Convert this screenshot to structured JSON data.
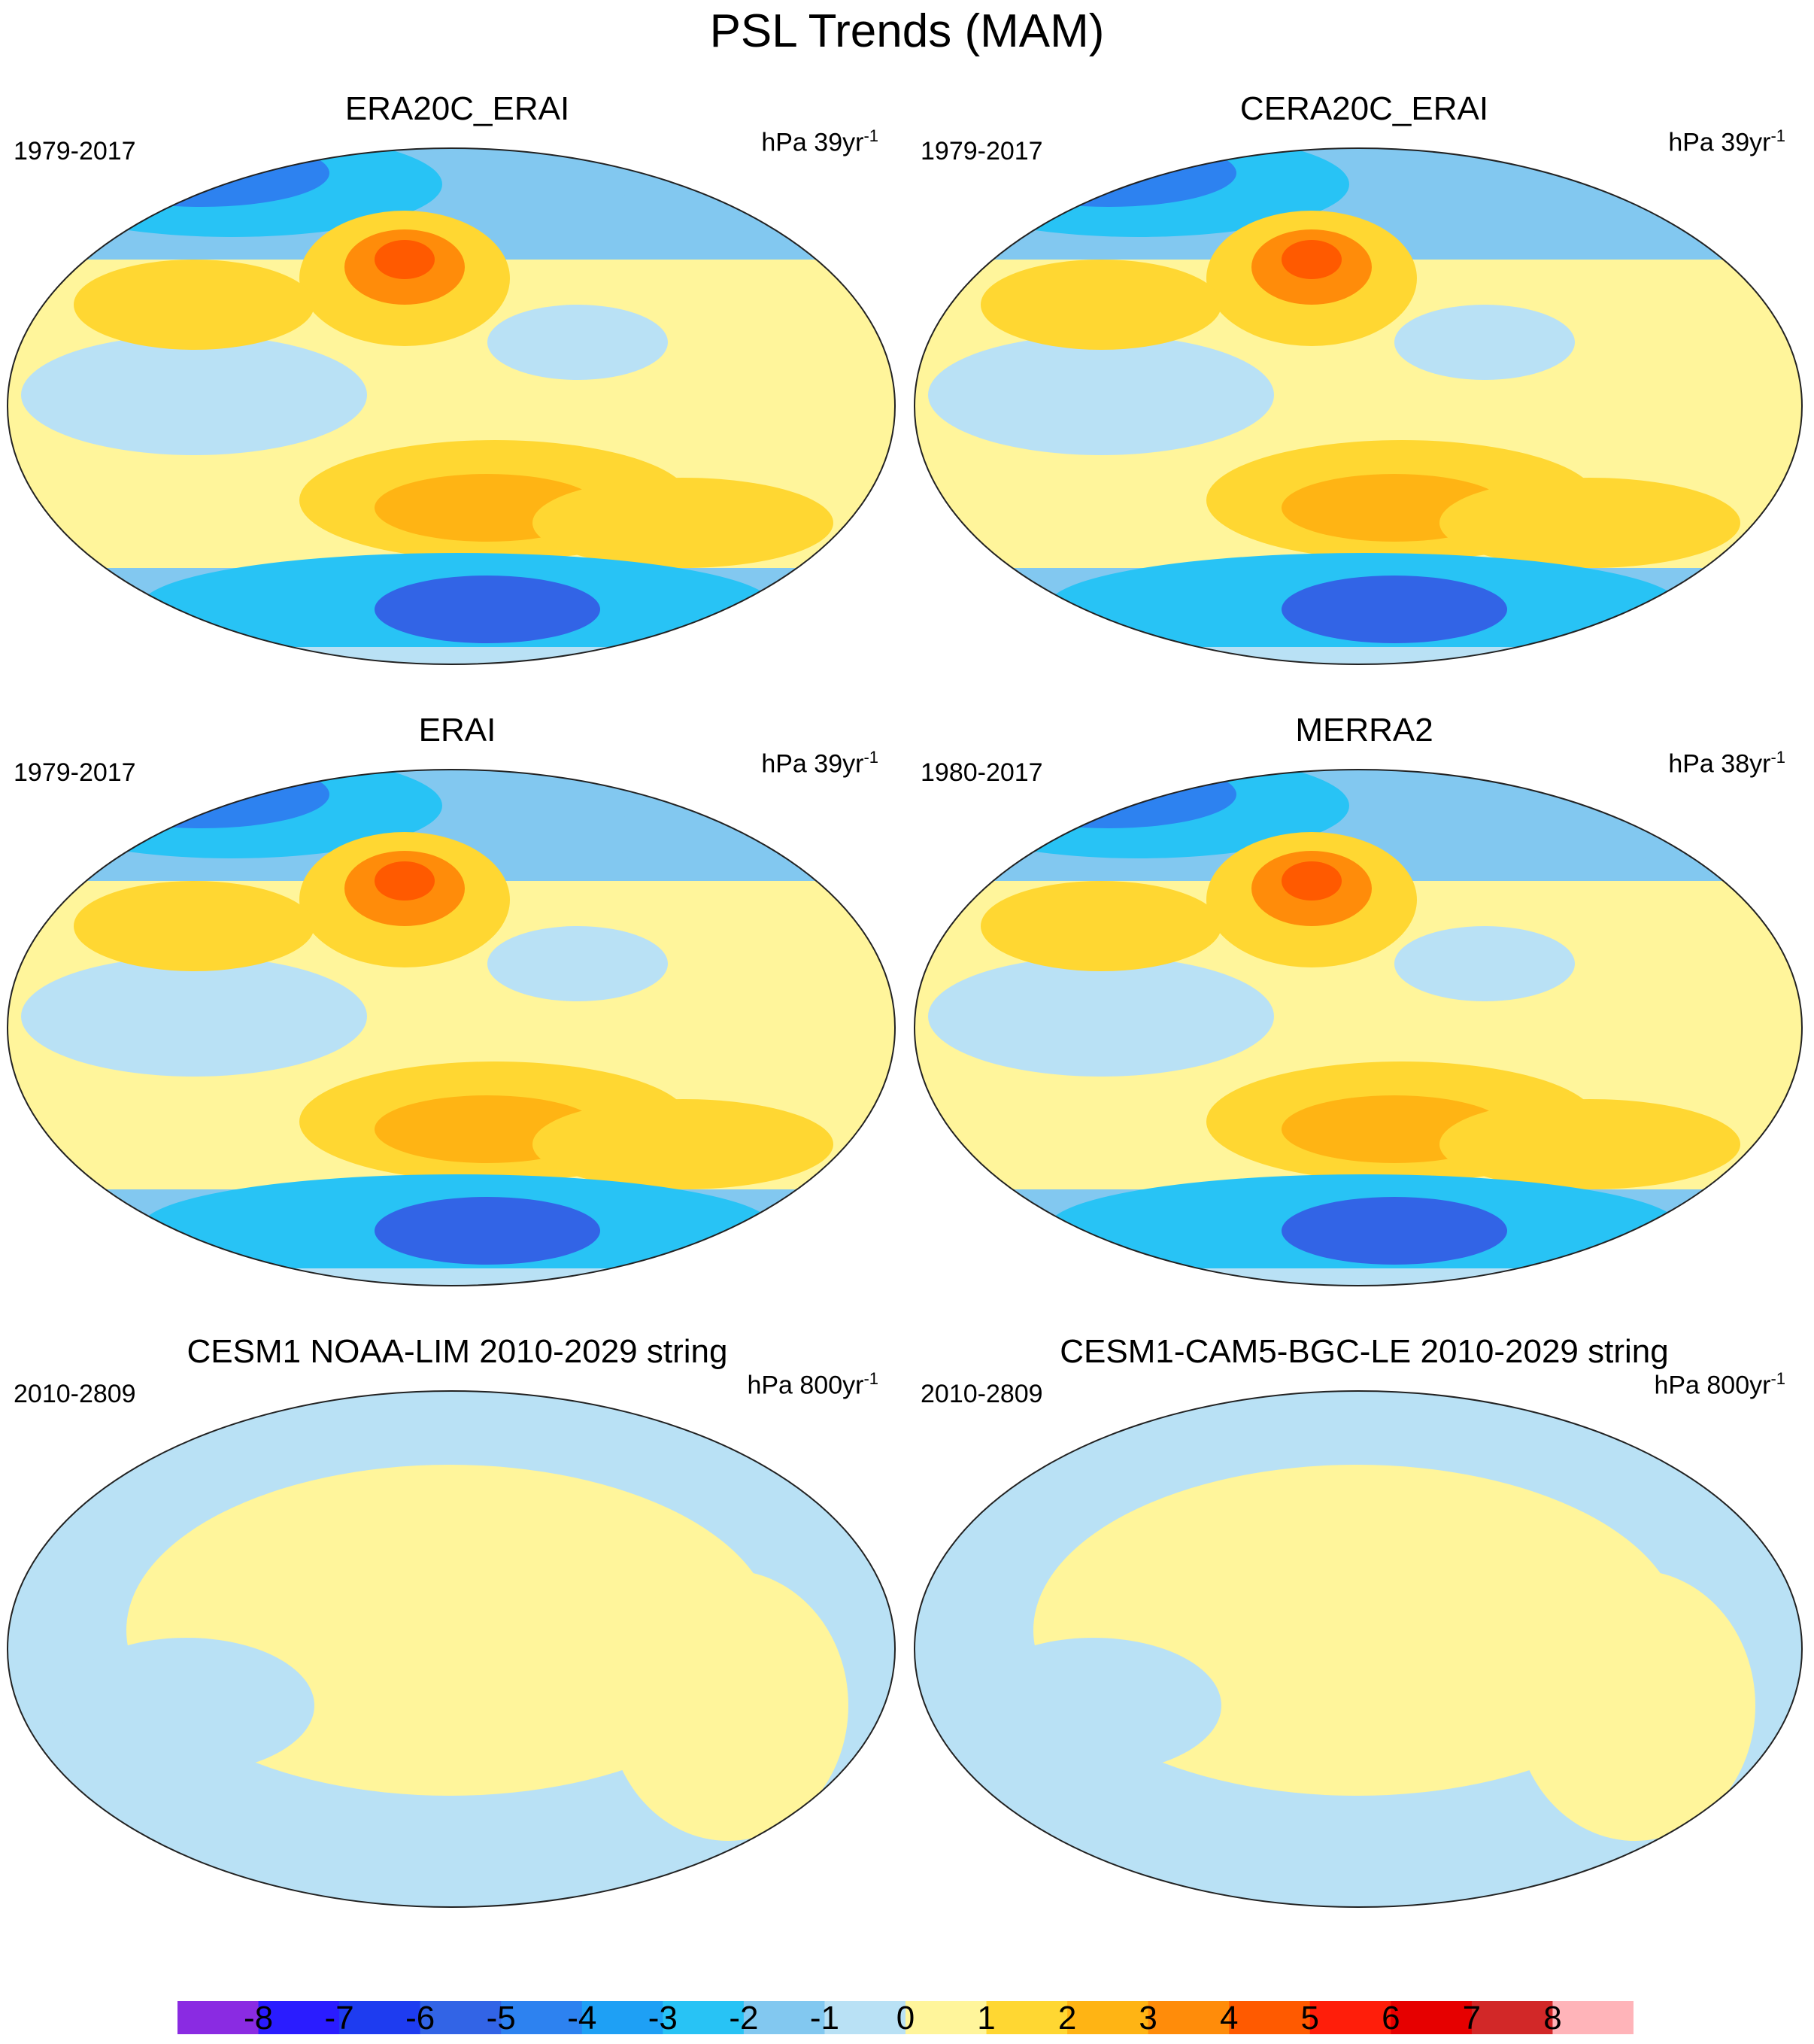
{
  "title": "PSL Trends (MAM)",
  "panels": [
    {
      "title": "ERA20C_ERAI",
      "years": "1979-2017",
      "units_prefix": "hPa 39yr",
      "units_exp": "-1",
      "pattern": "strong"
    },
    {
      "title": "CERA20C_ERAI",
      "years": "1979-2017",
      "units_prefix": "hPa 39yr",
      "units_exp": "-1",
      "pattern": "strong"
    },
    {
      "title": "ERAI",
      "years": "1979-2017",
      "units_prefix": "hPa 39yr",
      "units_exp": "-1",
      "pattern": "strong"
    },
    {
      "title": "MERRA2",
      "years": "1980-2017",
      "units_prefix": "hPa 38yr",
      "units_exp": "-1",
      "pattern": "strong"
    },
    {
      "title": "CESM1 NOAA-LIM 2010-2029 string",
      "years": "2010-2809",
      "units_prefix": "hPa 800yr",
      "units_exp": "-1",
      "pattern": "weak"
    },
    {
      "title": "CESM1-CAM5-BGC-LE 2010-2029 string",
      "years": "2010-2809",
      "units_prefix": "hPa 800yr",
      "units_exp": "-1",
      "pattern": "weak"
    }
  ],
  "colorbar": {
    "levels": [
      "-8",
      "-7",
      "-6",
      "-5",
      "-4",
      "-3",
      "-2",
      "-1",
      "0",
      "1",
      "2",
      "3",
      "4",
      "5",
      "6",
      "7",
      "8"
    ],
    "colors": [
      "#8a2be2",
      "#2a1cff",
      "#1e3cf0",
      "#3264e6",
      "#2d82f0",
      "#1ea0f5",
      "#28c3f5",
      "#82c8f0",
      "#b9e1f5",
      "#fff59b",
      "#ffd732",
      "#ffb414",
      "#ff8c0a",
      "#ff5a00",
      "#ff1e0a",
      "#e60000",
      "#d22828",
      "#ffb4b9"
    ]
  }
}
